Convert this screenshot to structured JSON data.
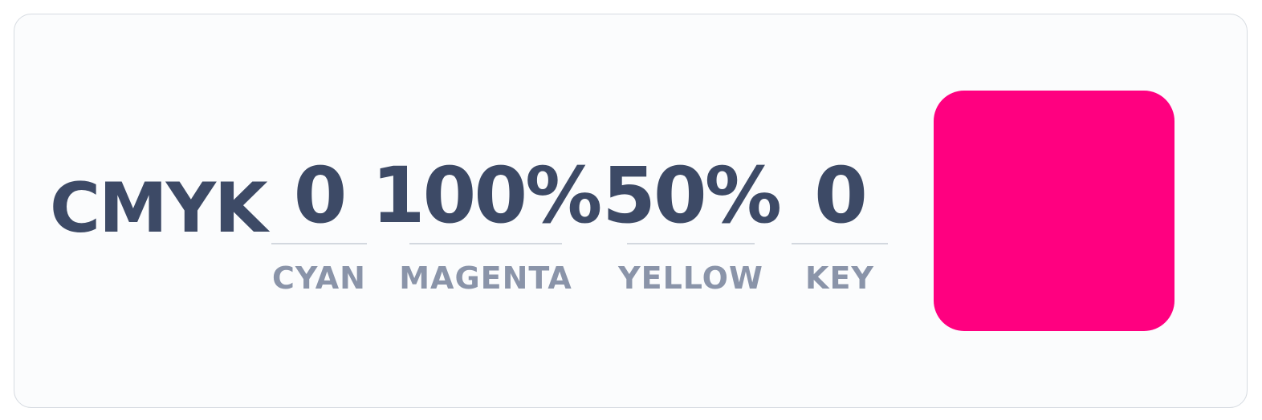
{
  "title": "CMYK",
  "channels": [
    {
      "value": "0",
      "label": "CYAN"
    },
    {
      "value": "100%",
      "label": "MAGENTA"
    },
    {
      "value": "50%",
      "label": "YELLOW"
    },
    {
      "value": "0",
      "label": "KEY"
    }
  ],
  "swatch": {
    "color": "#ff0080"
  },
  "colors": {
    "text": "#3d4a66",
    "label": "#8a94a9",
    "rule": "#d3d8df",
    "card_bg": "#fbfcfd",
    "card_border": "#d6dbe1"
  }
}
